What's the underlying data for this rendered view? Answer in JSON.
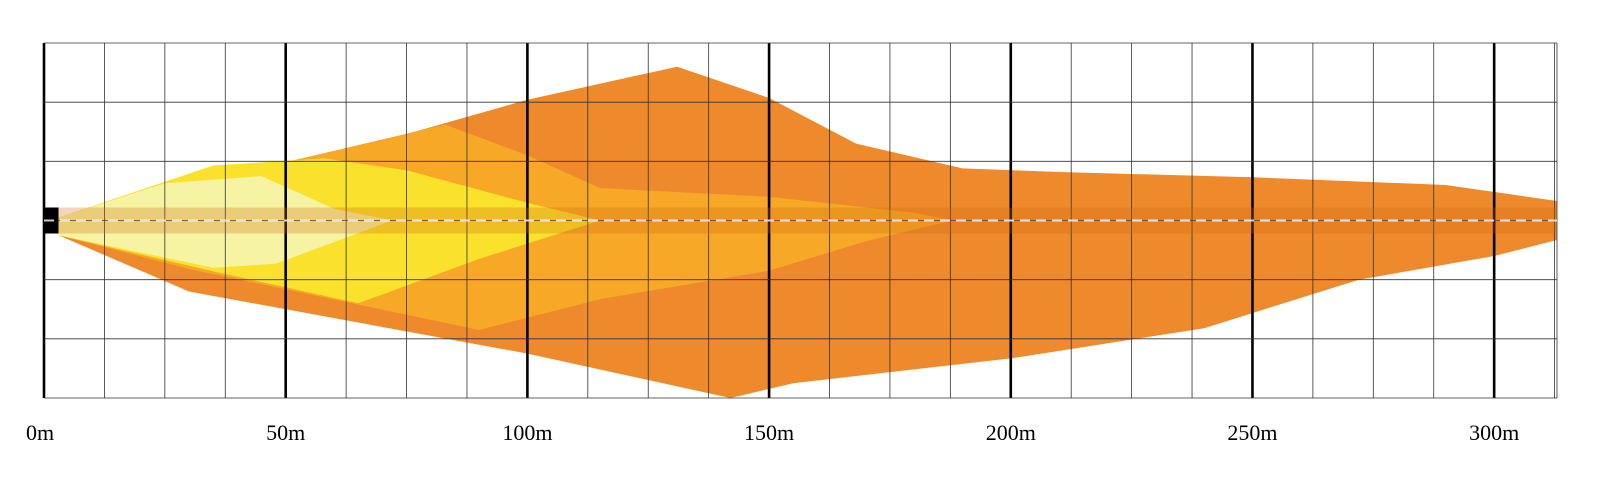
{
  "chart_data": {
    "type": "area",
    "title": "",
    "xlabel": "",
    "ylabel": "",
    "x_unit": "m",
    "xlim": [
      0,
      313
    ],
    "x_ticks": [
      {
        "value": 0,
        "label": "0m"
      },
      {
        "value": 50,
        "label": "50m"
      },
      {
        "value": 100,
        "label": "100m"
      },
      {
        "value": 150,
        "label": "150m"
      },
      {
        "value": 200,
        "label": "200m"
      },
      {
        "value": 250,
        "label": "250m"
      },
      {
        "value": 300,
        "label": "300m"
      }
    ],
    "x_minor_step": 12.5,
    "y_rows": 6,
    "grid": true,
    "legend": "none",
    "series": [
      {
        "color": "#EE8A2B",
        "upper": [
          [
            3,
            0.05
          ],
          [
            30,
            0.42
          ],
          [
            100,
            2.04
          ],
          [
            131,
            2.6
          ],
          [
            150,
            2.07
          ],
          [
            168,
            1.3
          ],
          [
            190,
            0.88
          ],
          [
            210,
            0.82
          ],
          [
            250,
            0.73
          ],
          [
            290,
            0.6
          ],
          [
            313,
            0.33
          ]
        ],
        "lower": [
          [
            3,
            -0.25
          ],
          [
            30,
            -1.2
          ],
          [
            100,
            -2.25
          ],
          [
            142,
            -3.0
          ],
          [
            155,
            -2.75
          ],
          [
            200,
            -2.33
          ],
          [
            240,
            -1.82
          ],
          [
            272,
            -1.0
          ],
          [
            300,
            -0.6
          ],
          [
            313,
            -0.33
          ]
        ]
      },
      {
        "color": "#F6A826",
        "upper": [
          [
            3,
            0.05
          ],
          [
            30,
            0.6
          ],
          [
            83,
            1.62
          ],
          [
            100,
            1.1
          ],
          [
            115,
            0.55
          ],
          [
            150,
            0.4
          ],
          [
            180,
            0.13
          ],
          [
            188,
            0.0
          ]
        ],
        "lower": [
          [
            3,
            -0.25
          ],
          [
            30,
            -0.82
          ],
          [
            90,
            -1.85
          ],
          [
            115,
            -1.33
          ],
          [
            150,
            -0.85
          ],
          [
            170,
            -0.35
          ],
          [
            188,
            0.0
          ]
        ]
      },
      {
        "color": "#F9E12C",
        "upper": [
          [
            3,
            0.05
          ],
          [
            35,
            0.93
          ],
          [
            58,
            1.05
          ],
          [
            75,
            0.85
          ],
          [
            100,
            0.3
          ],
          [
            115,
            0.0
          ]
        ],
        "lower": [
          [
            3,
            -0.25
          ],
          [
            35,
            -0.86
          ],
          [
            65,
            -1.4
          ],
          [
            90,
            -0.65
          ],
          [
            115,
            0.0
          ]
        ]
      },
      {
        "color": "#F6F3A2",
        "upper": [
          [
            3,
            0.05
          ],
          [
            25,
            0.63
          ],
          [
            45,
            0.75
          ],
          [
            60,
            0.2
          ],
          [
            72,
            0.0
          ]
        ],
        "lower": [
          [
            3,
            -0.25
          ],
          [
            35,
            -0.8
          ],
          [
            48,
            -0.73
          ],
          [
            72,
            0.0
          ]
        ]
      }
    ],
    "center_band": {
      "color": "#D2690E",
      "x_start": 3,
      "x_end": 313
    },
    "mount": {
      "color": "#000000",
      "x_start": 0,
      "x_end": 3
    }
  }
}
